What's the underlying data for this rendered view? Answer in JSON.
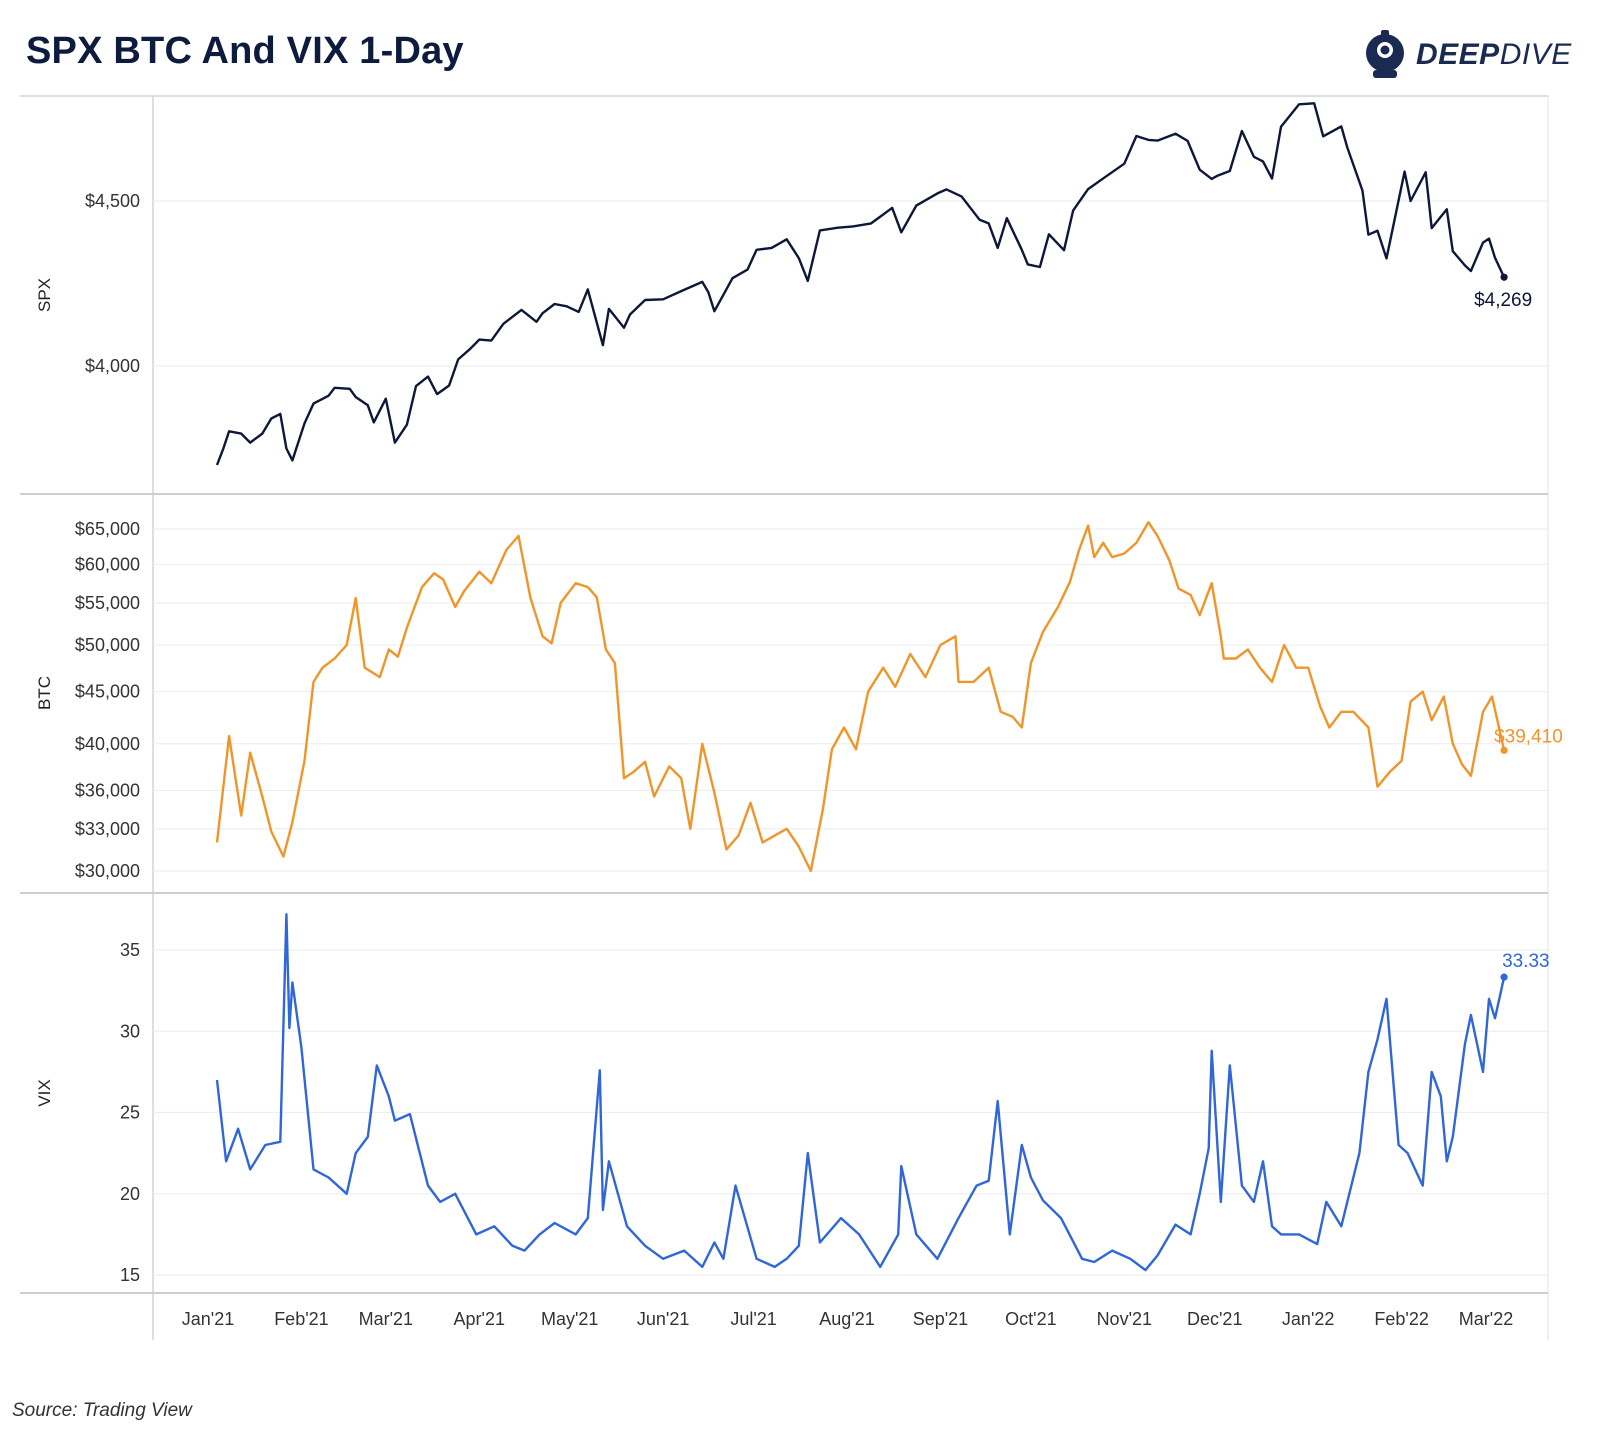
{
  "header": {
    "title": "SPX BTC And VIX 1-Day",
    "logo_text_bold": "DEEP",
    "logo_text_light": "DIVE"
  },
  "footer": {
    "source": "Source: Trading View"
  },
  "colors": {
    "spx": "#0d1838",
    "btc": "#f0952a",
    "vix": "#2f66d8"
  },
  "chart_data": [
    {
      "type": "line",
      "title": "SPX BTC And VIX 1-Day",
      "ylabel": "SPX",
      "ylim": [
        3610,
        4890
      ],
      "yticks": [
        4000,
        4500
      ],
      "ytick_labels": [
        "$4,000",
        "$4,500"
      ],
      "x_tick_labels": [
        "Jan'21",
        "Feb'21",
        "Mar'21",
        "Apr'21",
        "May'21",
        "Jun'21",
        "Jul'21",
        "Aug'21",
        "Sep'21",
        "Oct'21",
        "Nov'21",
        "Dec'21",
        "Jan'22",
        "Feb'22",
        "Mar'22"
      ],
      "grid": true,
      "end_label": "$4,269",
      "series": [
        {
          "x": [
            "2021-01-04",
            "2021-01-06",
            "2021-01-08",
            "2021-01-12",
            "2021-01-15",
            "2021-01-19",
            "2021-01-22",
            "2021-01-25",
            "2021-01-27",
            "2021-01-29",
            "2021-02-02",
            "2021-02-05",
            "2021-02-10",
            "2021-02-12",
            "2021-02-17",
            "2021-02-19",
            "2021-02-23",
            "2021-02-25",
            "2021-03-01",
            "2021-03-04",
            "2021-03-08",
            "2021-03-11",
            "2021-03-15",
            "2021-03-18",
            "2021-03-22",
            "2021-03-25",
            "2021-03-29",
            "2021-04-01",
            "2021-04-05",
            "2021-04-09",
            "2021-04-15",
            "2021-04-20",
            "2021-04-22",
            "2021-04-26",
            "2021-04-30",
            "2021-05-04",
            "2021-05-07",
            "2021-05-12",
            "2021-05-14",
            "2021-05-19",
            "2021-05-21",
            "2021-05-26",
            "2021-06-01",
            "2021-06-07",
            "2021-06-14",
            "2021-06-16",
            "2021-06-18",
            "2021-06-24",
            "2021-06-29",
            "2021-07-02",
            "2021-07-07",
            "2021-07-12",
            "2021-07-16",
            "2021-07-19",
            "2021-07-23",
            "2021-07-29",
            "2021-08-03",
            "2021-08-09",
            "2021-08-16",
            "2021-08-19",
            "2021-08-24",
            "2021-08-31",
            "2021-09-03",
            "2021-09-08",
            "2021-09-14",
            "2021-09-17",
            "2021-09-20",
            "2021-09-23",
            "2021-09-28",
            "2021-09-30",
            "2021-10-04",
            "2021-10-07",
            "2021-10-12",
            "2021-10-15",
            "2021-10-20",
            "2021-10-26",
            "2021-11-01",
            "2021-11-05",
            "2021-11-09",
            "2021-11-12",
            "2021-11-18",
            "2021-11-22",
            "2021-11-26",
            "2021-11-30",
            "2021-12-02",
            "2021-12-06",
            "2021-12-10",
            "2021-12-14",
            "2021-12-17",
            "2021-12-20",
            "2021-12-23",
            "2021-12-29",
            "2022-01-03",
            "2022-01-06",
            "2022-01-12",
            "2022-01-14",
            "2022-01-19",
            "2022-01-21",
            "2022-01-24",
            "2022-01-27",
            "2022-02-02",
            "2022-02-04",
            "2022-02-09",
            "2022-02-11",
            "2022-02-16",
            "2022-02-18",
            "2022-02-22",
            "2022-02-24",
            "2022-02-28",
            "2022-03-02",
            "2022-03-04",
            "2022-03-07"
          ],
          "y": [
            3700,
            3748,
            3802,
            3795,
            3768,
            3795,
            3841,
            3855,
            3750,
            3714,
            3826,
            3886,
            3910,
            3934,
            3931,
            3906,
            3881,
            3829,
            3901,
            3768,
            3822,
            3939,
            3968,
            3915,
            3941,
            4020,
            4052,
            4080,
            4077,
            4128,
            4170,
            4134,
            4160,
            4188,
            4181,
            4164,
            4232,
            4063,
            4173,
            4116,
            4156,
            4200,
            4202,
            4227,
            4255,
            4224,
            4166,
            4266,
            4292,
            4352,
            4358,
            4384,
            4327,
            4258,
            4411,
            4419,
            4423,
            4432,
            4479,
            4405,
            4486,
            4523,
            4535,
            4514,
            4443,
            4432,
            4358,
            4448,
            4352,
            4308,
            4300,
            4399,
            4351,
            4471,
            4536,
            4575,
            4613,
            4697,
            4685,
            4683,
            4704,
            4682,
            4595,
            4567,
            4577,
            4591,
            4712,
            4634,
            4620,
            4568,
            4725,
            4793,
            4796,
            4696,
            4726,
            4662,
            4532,
            4398,
            4410,
            4326,
            4589,
            4500,
            4587,
            4418,
            4475,
            4348,
            4305,
            4288,
            4374,
            4386,
            4328,
            4269
          ]
        }
      ]
    },
    {
      "type": "line",
      "ylabel": "BTC",
      "yticks": [
        30000,
        33000,
        36000,
        40000,
        45000,
        50000,
        55000,
        60000,
        65000
      ],
      "ytick_labels": [
        "$30,000",
        "$33,000",
        "$36,000",
        "$40,000",
        "$45,000",
        "$50,000",
        "$55,000",
        "$60,000",
        "$65,000"
      ],
      "grid": true,
      "end_label": "$39,410",
      "series": [
        {
          "x": [
            "2021-01-04",
            "2021-01-08",
            "2021-01-12",
            "2021-01-15",
            "2021-01-19",
            "2021-01-22",
            "2021-01-26",
            "2021-01-29",
            "2021-02-02",
            "2021-02-05",
            "2021-02-08",
            "2021-02-12",
            "2021-02-16",
            "2021-02-19",
            "2021-02-22",
            "2021-02-27",
            "2021-03-02",
            "2021-03-05",
            "2021-03-08",
            "2021-03-13",
            "2021-03-17",
            "2021-03-20",
            "2021-03-24",
            "2021-03-27",
            "2021-04-01",
            "2021-04-05",
            "2021-04-10",
            "2021-04-14",
            "2021-04-18",
            "2021-04-22",
            "2021-04-25",
            "2021-04-28",
            "2021-05-03",
            "2021-05-07",
            "2021-05-10",
            "2021-05-13",
            "2021-05-16",
            "2021-05-19",
            "2021-05-22",
            "2021-05-26",
            "2021-05-29",
            "2021-06-03",
            "2021-06-07",
            "2021-06-10",
            "2021-06-14",
            "2021-06-18",
            "2021-06-22",
            "2021-06-26",
            "2021-06-30",
            "2021-07-04",
            "2021-07-08",
            "2021-07-12",
            "2021-07-16",
            "2021-07-20",
            "2021-07-24",
            "2021-07-27",
            "2021-07-31",
            "2021-08-04",
            "2021-08-08",
            "2021-08-13",
            "2021-08-17",
            "2021-08-22",
            "2021-08-27",
            "2021-09-01",
            "2021-09-06",
            "2021-09-07",
            "2021-09-12",
            "2021-09-17",
            "2021-09-21",
            "2021-09-25",
            "2021-09-28",
            "2021-10-01",
            "2021-10-05",
            "2021-10-10",
            "2021-10-14",
            "2021-10-17",
            "2021-10-20",
            "2021-10-22",
            "2021-10-25",
            "2021-10-28",
            "2021-11-01",
            "2021-11-05",
            "2021-11-09",
            "2021-11-12",
            "2021-11-16",
            "2021-11-19",
            "2021-11-23",
            "2021-11-26",
            "2021-11-30",
            "2021-12-03",
            "2021-12-04",
            "2021-12-08",
            "2021-12-12",
            "2021-12-16",
            "2021-12-20",
            "2021-12-24",
            "2021-12-28",
            "2022-01-01",
            "2022-01-05",
            "2022-01-08",
            "2022-01-12",
            "2022-01-16",
            "2022-01-21",
            "2022-01-24",
            "2022-01-28",
            "2022-02-01",
            "2022-02-04",
            "2022-02-08",
            "2022-02-11",
            "2022-02-15",
            "2022-02-18",
            "2022-02-21",
            "2022-02-24",
            "2022-02-28",
            "2022-03-03",
            "2022-03-07"
          ],
          "y": [
            32000,
            40700,
            34000,
            39200,
            35500,
            32800,
            31000,
            33500,
            38500,
            46000,
            47500,
            48500,
            50000,
            55600,
            47500,
            46500,
            49500,
            48700,
            52000,
            57000,
            58800,
            58000,
            54500,
            56500,
            59000,
            57500,
            62000,
            64000,
            55600,
            51000,
            50200,
            55000,
            57500,
            57000,
            55700,
            49500,
            48000,
            37000,
            37500,
            38400,
            35500,
            38000,
            37000,
            33000,
            40000,
            35800,
            31500,
            32500,
            35000,
            32000,
            32500,
            33000,
            31700,
            30000,
            34500,
            39500,
            41500,
            39500,
            45000,
            47500,
            45500,
            49000,
            46500,
            50000,
            51000,
            46000,
            46000,
            47500,
            43000,
            42500,
            41500,
            48000,
            51500,
            54500,
            57700,
            62000,
            65500,
            61000,
            63000,
            61000,
            61500,
            63000,
            66000,
            64000,
            60500,
            56800,
            56000,
            53500,
            57500,
            51000,
            48500,
            48500,
            49500,
            47500,
            46000,
            50000,
            47500,
            47500,
            43500,
            41500,
            43000,
            43000,
            41500,
            36300,
            37500,
            38500,
            44000,
            45000,
            42200,
            44500,
            40000,
            38200,
            37200,
            43000,
            44500,
            39410
          ]
        }
      ]
    },
    {
      "type": "line",
      "ylabel": "VIX",
      "ylim": [
        14,
        38
      ],
      "yticks": [
        15,
        20,
        25,
        30,
        35
      ],
      "ytick_labels": [
        "15",
        "20",
        "25",
        "30",
        "35"
      ],
      "grid": true,
      "end_label": "33.33",
      "series": [
        {
          "x": [
            "2021-01-04",
            "2021-01-07",
            "2021-01-11",
            "2021-01-15",
            "2021-01-20",
            "2021-01-25",
            "2021-01-27",
            "2021-01-28",
            "2021-01-29",
            "2021-02-01",
            "2021-02-05",
            "2021-02-10",
            "2021-02-16",
            "2021-02-19",
            "2021-02-23",
            "2021-02-26",
            "2021-03-02",
            "2021-03-04",
            "2021-03-09",
            "2021-03-15",
            "2021-03-19",
            "2021-03-24",
            "2021-03-31",
            "2021-04-06",
            "2021-04-12",
            "2021-04-16",
            "2021-04-21",
            "2021-04-26",
            "2021-05-03",
            "2021-05-07",
            "2021-05-11",
            "2021-05-12",
            "2021-05-14",
            "2021-05-20",
            "2021-05-26",
            "2021-06-01",
            "2021-06-08",
            "2021-06-14",
            "2021-06-18",
            "2021-06-21",
            "2021-06-25",
            "2021-07-02",
            "2021-07-08",
            "2021-07-12",
            "2021-07-16",
            "2021-07-19",
            "2021-07-23",
            "2021-07-30",
            "2021-08-05",
            "2021-08-12",
            "2021-08-18",
            "2021-08-19",
            "2021-08-24",
            "2021-08-31",
            "2021-09-07",
            "2021-09-13",
            "2021-09-17",
            "2021-09-20",
            "2021-09-24",
            "2021-09-28",
            "2021-10-01",
            "2021-10-05",
            "2021-10-11",
            "2021-10-18",
            "2021-10-22",
            "2021-10-28",
            "2021-11-03",
            "2021-11-08",
            "2021-11-12",
            "2021-11-18",
            "2021-11-23",
            "2021-11-26",
            "2021-11-29",
            "2021-11-30",
            "2021-12-03",
            "2021-12-06",
            "2021-12-10",
            "2021-12-14",
            "2021-12-17",
            "2021-12-20",
            "2021-12-23",
            "2021-12-29",
            "2022-01-04",
            "2022-01-07",
            "2022-01-12",
            "2022-01-14",
            "2022-01-18",
            "2022-01-21",
            "2022-01-24",
            "2022-01-27",
            "2022-01-31",
            "2022-02-03",
            "2022-02-08",
            "2022-02-11",
            "2022-02-14",
            "2022-02-16",
            "2022-02-18",
            "2022-02-22",
            "2022-02-24",
            "2022-02-28",
            "2022-03-02",
            "2022-03-04",
            "2022-03-07"
          ],
          "y": [
            27,
            22,
            24,
            21.5,
            23,
            23.2,
            37.2,
            30.2,
            33,
            29,
            21.5,
            21,
            20,
            22.5,
            23.5,
            27.9,
            26,
            24.5,
            24.9,
            20.5,
            19.5,
            20,
            17.5,
            18,
            16.8,
            16.5,
            17.5,
            18.2,
            17.5,
            18.5,
            27.6,
            19,
            22,
            18,
            16.8,
            16,
            16.5,
            15.5,
            17,
            16,
            20.5,
            16,
            15.5,
            16,
            16.8,
            22.5,
            17,
            18.5,
            17.5,
            15.5,
            17.5,
            21.7,
            17.5,
            16,
            18.5,
            20.5,
            20.8,
            25.7,
            17.5,
            23,
            21,
            19.6,
            18.5,
            16,
            15.8,
            16.5,
            16,
            15.3,
            16.2,
            18.1,
            17.5,
            20,
            22.8,
            28.8,
            19.5,
            27.9,
            20.5,
            19.5,
            22,
            18,
            17.5,
            17.5,
            16.9,
            19.5,
            18,
            19.5,
            22.5,
            27.5,
            29.5,
            32,
            23,
            22.5,
            20.5,
            27.5,
            26,
            22,
            23.5,
            29.2,
            31,
            27.5,
            32,
            30.8,
            33.33
          ]
        }
      ]
    }
  ]
}
